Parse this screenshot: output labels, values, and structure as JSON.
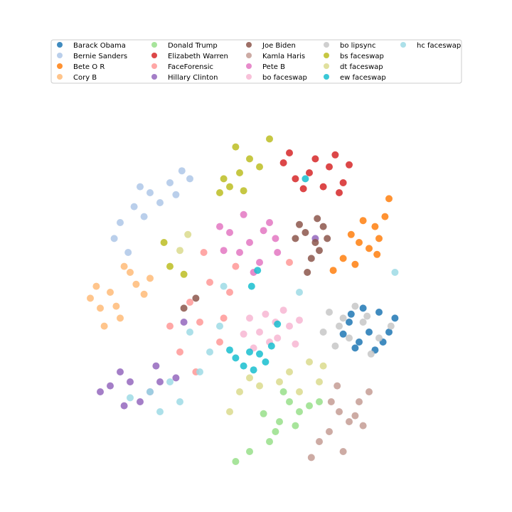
{
  "chart_data": {
    "type": "scatter",
    "title": "",
    "xlabel": "",
    "ylabel": "",
    "axes_visible": false,
    "grid": false,
    "legend_placement": "top-center",
    "legend_columns": 5,
    "series": [
      {
        "name": "Barack Obama",
        "color": "#1f77b4",
        "points": [
          [
            5.5,
            -1.5
          ],
          [
            4.5,
            -1.0
          ],
          [
            6.0,
            -0.5
          ],
          [
            5.0,
            -2.0
          ],
          [
            6.5,
            -1.5
          ],
          [
            4.8,
            -2.3
          ],
          [
            5.8,
            -2.4
          ],
          [
            6.8,
            -0.8
          ],
          [
            4.2,
            -1.6
          ],
          [
            5.2,
            -0.3
          ],
          [
            6.2,
            -2.0
          ],
          [
            4.6,
            -0.6
          ]
        ]
      },
      {
        "name": "Bernie Sanders",
        "color": "#aec7e8",
        "points": [
          [
            -5.5,
            5.5
          ],
          [
            -6.3,
            4.8
          ],
          [
            -4.5,
            6.0
          ],
          [
            -7.0,
            4.0
          ],
          [
            -5.0,
            5.0
          ],
          [
            -3.5,
            6.2
          ],
          [
            -6.0,
            5.8
          ],
          [
            -7.3,
            3.2
          ],
          [
            -4.2,
            5.4
          ],
          [
            -5.8,
            4.3
          ],
          [
            -6.6,
            2.5
          ],
          [
            -3.9,
            6.6
          ]
        ]
      },
      {
        "name": "Bete O R",
        "color": "#ff7f0e",
        "points": [
          [
            5.0,
            3.0
          ],
          [
            5.8,
            3.8
          ],
          [
            4.2,
            2.2
          ],
          [
            6.3,
            4.3
          ],
          [
            5.5,
            2.7
          ],
          [
            4.6,
            3.4
          ],
          [
            6.0,
            3.2
          ],
          [
            3.7,
            1.6
          ],
          [
            5.2,
            4.1
          ],
          [
            6.5,
            5.2
          ],
          [
            4.8,
            1.9
          ],
          [
            5.9,
            2.4
          ]
        ]
      },
      {
        "name": "Cory B",
        "color": "#ffbb78",
        "points": [
          [
            -7.5,
            0.5
          ],
          [
            -8.0,
            -0.3
          ],
          [
            -7.0,
            -0.8
          ],
          [
            -6.5,
            1.5
          ],
          [
            -5.5,
            1.2
          ],
          [
            -8.5,
            0.2
          ],
          [
            -7.2,
            -0.2
          ],
          [
            -5.8,
            0.4
          ],
          [
            -6.8,
            1.8
          ],
          [
            -7.8,
            -1.2
          ],
          [
            -6.2,
            0.9
          ],
          [
            -8.2,
            0.8
          ]
        ]
      },
      {
        "name": "Donald Trump",
        "color": "#98df8a",
        "points": [
          [
            1.0,
            -6.0
          ],
          [
            1.5,
            -5.0
          ],
          [
            0.5,
            -7.0
          ],
          [
            2.0,
            -5.5
          ],
          [
            1.2,
            -4.5
          ],
          [
            -0.5,
            -7.5
          ],
          [
            2.5,
            -5.2
          ],
          [
            0.8,
            -6.5
          ],
          [
            -1.2,
            -8.0
          ],
          [
            3.0,
            -5.0
          ],
          [
            1.8,
            -6.2
          ],
          [
            0.2,
            -5.6
          ]
        ]
      },
      {
        "name": "Elizabeth Warren",
        "color": "#d62728",
        "points": [
          [
            2.5,
            6.5
          ],
          [
            3.5,
            6.8
          ],
          [
            1.5,
            7.5
          ],
          [
            4.2,
            6.0
          ],
          [
            2.8,
            7.2
          ],
          [
            1.8,
            6.2
          ],
          [
            3.2,
            5.8
          ],
          [
            4.5,
            6.9
          ],
          [
            2.2,
            5.7
          ],
          [
            3.8,
            7.4
          ],
          [
            1.2,
            7.0
          ],
          [
            4.0,
            5.5
          ]
        ]
      },
      {
        "name": "FaceForensic",
        "color": "#ff9896",
        "points": [
          [
            -2.5,
            1.0
          ],
          [
            -3.0,
            -1.0
          ],
          [
            -2.0,
            -2.0
          ],
          [
            -3.5,
            0.0
          ],
          [
            -1.5,
            0.5
          ],
          [
            -4.0,
            -2.5
          ],
          [
            -2.8,
            2.5
          ],
          [
            -1.2,
            1.8
          ],
          [
            -4.5,
            -1.2
          ],
          [
            -3.2,
            -3.5
          ],
          [
            -1.8,
            -0.8
          ],
          [
            1.5,
            2.0
          ]
        ]
      },
      {
        "name": "Hillary Clinton",
        "color": "#9467bd",
        "points": [
          [
            -6.5,
            -4.0
          ],
          [
            -7.5,
            -4.2
          ],
          [
            -5.5,
            -4.5
          ],
          [
            -7.0,
            -3.5
          ],
          [
            -6.0,
            -5.0
          ],
          [
            -5.0,
            -4.0
          ],
          [
            -8.0,
            -4.5
          ],
          [
            -6.8,
            -5.2
          ],
          [
            -4.2,
            -3.8
          ],
          [
            -3.8,
            -1.0
          ],
          [
            2.8,
            3.2
          ],
          [
            -5.2,
            -3.2
          ]
        ]
      },
      {
        "name": "Joe Biden",
        "color": "#8c564b",
        "points": [
          [
            2.3,
            3.5
          ],
          [
            2.8,
            3.0
          ],
          [
            2.6,
            2.2
          ],
          [
            3.2,
            3.8
          ],
          [
            2.0,
            3.9
          ],
          [
            3.0,
            2.6
          ],
          [
            2.4,
            1.5
          ],
          [
            3.4,
            3.2
          ],
          [
            1.8,
            3.2
          ],
          [
            2.9,
            4.2
          ],
          [
            -3.8,
            -0.3
          ],
          [
            -3.2,
            0.2
          ]
        ]
      },
      {
        "name": "Kamla Haris",
        "color": "#c49c94",
        "points": [
          [
            4.0,
            -5.5
          ],
          [
            5.0,
            -5.0
          ],
          [
            3.5,
            -6.5
          ],
          [
            4.5,
            -6.0
          ],
          [
            5.5,
            -4.5
          ],
          [
            3.0,
            -7.0
          ],
          [
            4.2,
            -7.5
          ],
          [
            5.2,
            -6.2
          ],
          [
            3.6,
            -5.0
          ],
          [
            2.6,
            -7.8
          ],
          [
            4.8,
            -5.7
          ],
          [
            3.9,
            -4.2
          ]
        ]
      },
      {
        "name": "Pete B",
        "color": "#e377c2",
        "points": [
          [
            -1.5,
            3.5
          ],
          [
            -0.5,
            3.0
          ],
          [
            -1.0,
            2.5
          ],
          [
            0.5,
            4.0
          ],
          [
            -2.0,
            3.8
          ],
          [
            0.0,
            2.0
          ],
          [
            -0.8,
            4.4
          ],
          [
            0.8,
            3.2
          ],
          [
            -1.8,
            2.6
          ],
          [
            0.2,
            3.6
          ],
          [
            -0.3,
            1.5
          ],
          [
            0.9,
            2.5
          ]
        ]
      },
      {
        "name": "bo faceswap",
        "color": "#f7b6d2",
        "points": [
          [
            0.0,
            -1.5
          ],
          [
            0.8,
            -1.0
          ],
          [
            -0.5,
            -0.8
          ],
          [
            1.5,
            -1.2
          ],
          [
            0.5,
            -2.0
          ],
          [
            -0.3,
            -2.3
          ],
          [
            1.2,
            -0.4
          ],
          [
            0.3,
            -0.6
          ],
          [
            -0.8,
            -1.6
          ],
          [
            1.8,
            -2.1
          ],
          [
            0.9,
            -1.8
          ],
          [
            2.0,
            -0.9
          ]
        ]
      },
      {
        "name": "bo lipsync",
        "color": "#c7c7c7",
        "points": [
          [
            4.0,
            -1.2
          ],
          [
            4.5,
            -1.8
          ],
          [
            3.5,
            -0.5
          ],
          [
            5.2,
            -1.0
          ],
          [
            6.0,
            -1.8
          ],
          [
            3.2,
            -1.5
          ],
          [
            4.8,
            -0.2
          ],
          [
            5.6,
            -2.6
          ],
          [
            3.8,
            -2.2
          ],
          [
            6.6,
            -1.2
          ],
          [
            4.2,
            -0.8
          ],
          [
            5.4,
            -0.7
          ]
        ]
      },
      {
        "name": "bs faceswap",
        "color": "#bcbd22",
        "points": [
          [
            -1.0,
            6.5
          ],
          [
            -1.8,
            6.2
          ],
          [
            -0.5,
            7.2
          ],
          [
            -2.0,
            5.5
          ],
          [
            -1.2,
            7.8
          ],
          [
            0.0,
            6.8
          ],
          [
            -1.5,
            5.8
          ],
          [
            0.5,
            8.2
          ],
          [
            -0.8,
            5.6
          ],
          [
            -4.8,
            3.0
          ],
          [
            -4.5,
            1.8
          ],
          [
            -3.8,
            1.4
          ]
        ]
      },
      {
        "name": "dt faceswap",
        "color": "#dbdb8d",
        "points": [
          [
            1.5,
            -3.5
          ],
          [
            2.5,
            -3.0
          ],
          [
            3.0,
            -4.0
          ],
          [
            1.0,
            -4.0
          ],
          [
            2.0,
            -4.5
          ],
          [
            -0.5,
            -3.8
          ],
          [
            -1.0,
            -4.5
          ],
          [
            0.0,
            -4.2
          ],
          [
            -1.5,
            -5.5
          ],
          [
            3.2,
            -3.2
          ],
          [
            -4.0,
            2.6
          ],
          [
            -3.6,
            3.4
          ]
        ]
      },
      {
        "name": "ew faceswap",
        "color": "#17becf",
        "points": [
          [
            -0.5,
            -2.5
          ],
          [
            -1.2,
            -2.8
          ],
          [
            0.3,
            -3.0
          ],
          [
            -0.8,
            -3.2
          ],
          [
            0.0,
            -2.6
          ],
          [
            -1.5,
            -2.4
          ],
          [
            0.6,
            -2.2
          ],
          [
            -0.3,
            -3.4
          ],
          [
            0.9,
            -1.1
          ],
          [
            -0.4,
            0.8
          ],
          [
            2.3,
            6.2
          ],
          [
            -0.1,
            1.6
          ]
        ]
      },
      {
        "name": "hc faceswap",
        "color": "#9edae5",
        "points": [
          [
            -5.5,
            -4.5
          ],
          [
            -4.5,
            -4.0
          ],
          [
            -3.0,
            -3.5
          ],
          [
            -5.0,
            -5.5
          ],
          [
            -4.0,
            -5.0
          ],
          [
            -2.5,
            -2.5
          ],
          [
            -6.5,
            -4.8
          ],
          [
            -3.5,
            -1.5
          ],
          [
            -2.0,
            -1.2
          ],
          [
            2.0,
            0.5
          ],
          [
            -1.8,
            0.8
          ],
          [
            6.8,
            1.5
          ]
        ]
      }
    ]
  }
}
